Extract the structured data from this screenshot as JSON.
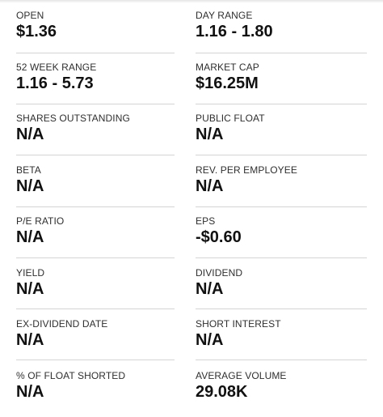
{
  "stats": [
    {
      "left": {
        "label": "OPEN",
        "value": "$1.36"
      },
      "right": {
        "label": "DAY RANGE",
        "value": "1.16 - 1.80"
      }
    },
    {
      "left": {
        "label": "52 WEEK RANGE",
        "value": "1.16 - 5.73"
      },
      "right": {
        "label": "MARKET CAP",
        "value": "$16.25M"
      }
    },
    {
      "left": {
        "label": "SHARES OUTSTANDING",
        "value": "N/A"
      },
      "right": {
        "label": "PUBLIC FLOAT",
        "value": "N/A"
      }
    },
    {
      "left": {
        "label": "BETA",
        "value": "N/A"
      },
      "right": {
        "label": "REV. PER EMPLOYEE",
        "value": "N/A"
      }
    },
    {
      "left": {
        "label": "P/E RATIO",
        "value": "N/A"
      },
      "right": {
        "label": "EPS",
        "value": "-$0.60"
      }
    },
    {
      "left": {
        "label": "YIELD",
        "value": "N/A"
      },
      "right": {
        "label": "DIVIDEND",
        "value": "N/A"
      }
    },
    {
      "left": {
        "label": "EX-DIVIDEND DATE",
        "value": "N/A"
      },
      "right": {
        "label": "SHORT INTEREST",
        "value": "N/A"
      }
    },
    {
      "left": {
        "label": "% OF FLOAT SHORTED",
        "value": "N/A"
      },
      "right": {
        "label": "AVERAGE VOLUME",
        "value": "29.08K"
      }
    }
  ]
}
